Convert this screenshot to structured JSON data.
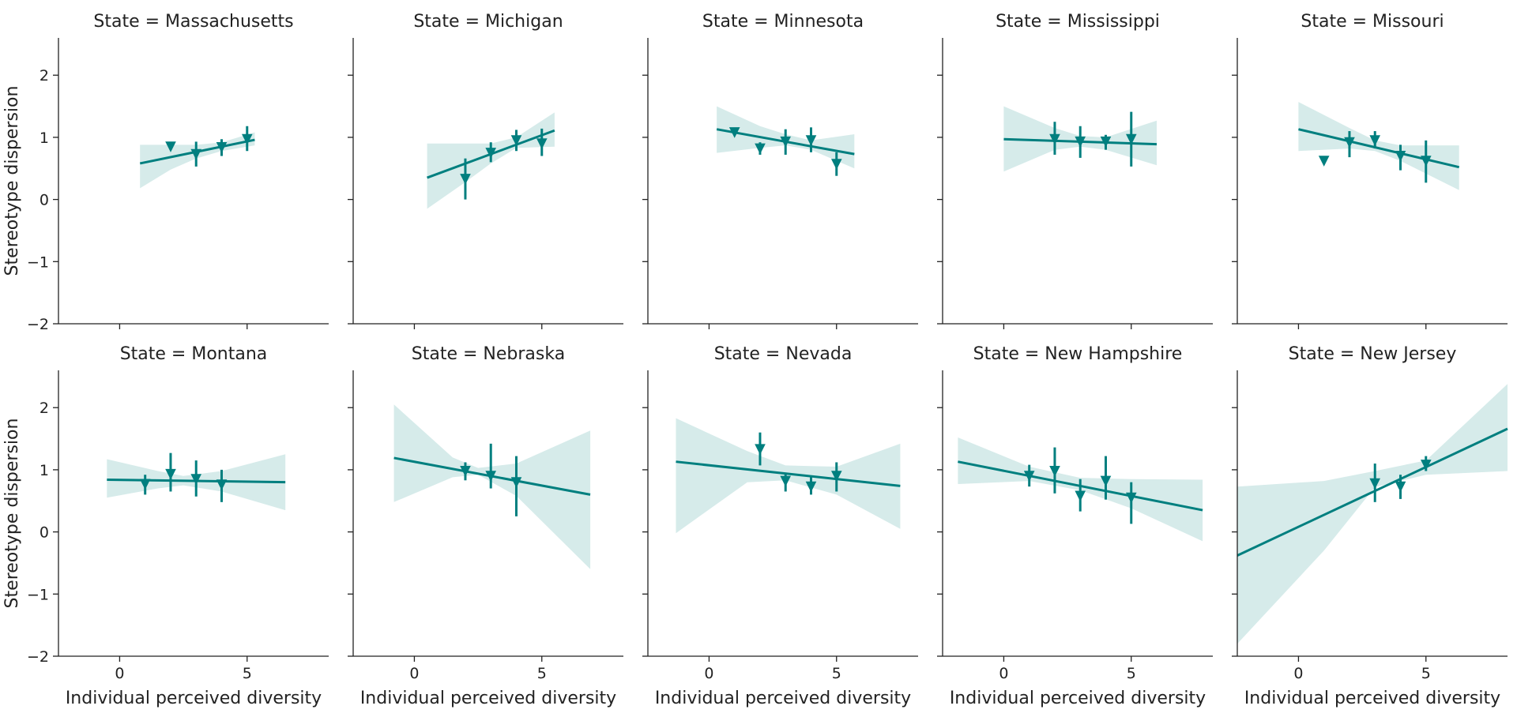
{
  "chart_data": {
    "type": "scatter",
    "layout": {
      "rows": 2,
      "cols": 5,
      "sharey": true,
      "sharex": true
    },
    "xlabel": "Individual perceived diversity",
    "ylabel": "Stereotype dispersion",
    "xlim": [
      -2.4,
      8.2
    ],
    "ylim": [
      -2.0,
      2.6
    ],
    "xticks": [
      0,
      5
    ],
    "yticks": [
      2,
      1,
      0,
      -1,
      -2
    ],
    "ytick_labels": [
      "2",
      "1",
      "0",
      "−1",
      "−2"
    ],
    "marker": "triangle-down",
    "color": "#007f7f",
    "band_color": "#d6ebea",
    "grid": false,
    "panels": [
      {
        "title": "State = Massachusetts",
        "points": [
          {
            "x": 2,
            "y": 0.85,
            "lo": 0.85,
            "hi": 0.85
          },
          {
            "x": 3,
            "y": 0.73,
            "lo": 0.53,
            "hi": 0.93
          },
          {
            "x": 4,
            "y": 0.84,
            "lo": 0.7,
            "hi": 0.97
          },
          {
            "x": 5,
            "y": 0.97,
            "lo": 0.78,
            "hi": 1.18
          }
        ],
        "fit": {
          "x0": 0.8,
          "y0": 0.58,
          "x1": 5.3,
          "y1": 0.96
        },
        "band": [
          [
            0.8,
            0.18,
            0.88
          ],
          [
            2.0,
            0.48,
            0.88
          ],
          [
            3.0,
            0.66,
            0.88
          ],
          [
            4.0,
            0.78,
            0.92
          ],
          [
            5.3,
            0.87,
            1.08
          ]
        ]
      },
      {
        "title": "State = Michigan",
        "points": [
          {
            "x": 2,
            "y": 0.33,
            "lo": 0.0,
            "hi": 0.66
          },
          {
            "x": 3,
            "y": 0.75,
            "lo": 0.6,
            "hi": 0.92
          },
          {
            "x": 4,
            "y": 0.95,
            "lo": 0.78,
            "hi": 1.12
          },
          {
            "x": 5,
            "y": 0.9,
            "lo": 0.7,
            "hi": 1.14
          }
        ],
        "fit": {
          "x0": 0.5,
          "y0": 0.35,
          "x1": 5.5,
          "y1": 1.11
        },
        "band": [
          [
            0.5,
            -0.15,
            0.9
          ],
          [
            2.0,
            0.28,
            0.9
          ],
          [
            3.0,
            0.58,
            0.9
          ],
          [
            4.0,
            0.83,
            1.0
          ],
          [
            5.5,
            0.85,
            1.4
          ]
        ]
      },
      {
        "title": "State = Minnesota",
        "points": [
          {
            "x": 1,
            "y": 1.08,
            "lo": 1.08,
            "hi": 1.08
          },
          {
            "x": 2,
            "y": 0.82,
            "lo": 0.72,
            "hi": 0.92
          },
          {
            "x": 3,
            "y": 0.93,
            "lo": 0.72,
            "hi": 1.13
          },
          {
            "x": 4,
            "y": 0.95,
            "lo": 0.76,
            "hi": 1.16
          },
          {
            "x": 5,
            "y": 0.57,
            "lo": 0.38,
            "hi": 0.76
          }
        ],
        "fit": {
          "x0": 0.3,
          "y0": 1.13,
          "x1": 5.7,
          "y1": 0.73
        },
        "band": [
          [
            0.3,
            0.75,
            1.5
          ],
          [
            2.0,
            0.83,
            1.18
          ],
          [
            3.0,
            0.87,
            1.05
          ],
          [
            4.0,
            0.8,
            0.95
          ],
          [
            5.7,
            0.5,
            1.05
          ]
        ]
      },
      {
        "title": "State = Mississippi",
        "points": [
          {
            "x": 2,
            "y": 0.97,
            "lo": 0.72,
            "hi": 1.25
          },
          {
            "x": 3,
            "y": 0.93,
            "lo": 0.67,
            "hi": 1.18
          },
          {
            "x": 4,
            "y": 0.93,
            "lo": 0.8,
            "hi": 1.04
          },
          {
            "x": 5,
            "y": 0.97,
            "lo": 0.53,
            "hi": 1.41
          }
        ],
        "fit": {
          "x0": 0.0,
          "y0": 0.97,
          "x1": 6.0,
          "y1": 0.89
        },
        "band": [
          [
            0.0,
            0.45,
            1.5
          ],
          [
            2.0,
            0.8,
            1.15
          ],
          [
            3.0,
            0.85,
            1.02
          ],
          [
            4.0,
            0.8,
            1.0
          ],
          [
            6.0,
            0.55,
            1.27
          ]
        ]
      },
      {
        "title": "State = Missouri",
        "points": [
          {
            "x": 1,
            "y": 0.62,
            "lo": 0.62,
            "hi": 0.62
          },
          {
            "x": 2,
            "y": 0.92,
            "lo": 0.68,
            "hi": 1.1
          },
          {
            "x": 3,
            "y": 0.95,
            "lo": 0.82,
            "hi": 1.1
          },
          {
            "x": 4,
            "y": 0.7,
            "lo": 0.47,
            "hi": 0.88
          },
          {
            "x": 5,
            "y": 0.62,
            "lo": 0.27,
            "hi": 0.95
          }
        ],
        "fit": {
          "x0": 0.0,
          "y0": 1.13,
          "x1": 6.3,
          "y1": 0.52
        },
        "band": [
          [
            0.0,
            0.78,
            1.57
          ],
          [
            2.0,
            0.82,
            1.15
          ],
          [
            3.0,
            0.78,
            0.95
          ],
          [
            4.0,
            0.62,
            0.87
          ],
          [
            6.3,
            0.15,
            0.87
          ]
        ]
      },
      {
        "title": "State = Montana",
        "points": [
          {
            "x": 1,
            "y": 0.77,
            "lo": 0.6,
            "hi": 0.92
          },
          {
            "x": 2,
            "y": 0.93,
            "lo": 0.65,
            "hi": 1.27
          },
          {
            "x": 3,
            "y": 0.85,
            "lo": 0.57,
            "hi": 1.15
          },
          {
            "x": 4,
            "y": 0.76,
            "lo": 0.48,
            "hi": 1.0
          }
        ],
        "fit": {
          "x0": -0.5,
          "y0": 0.84,
          "x1": 6.5,
          "y1": 0.8
        },
        "band": [
          [
            -0.5,
            0.55,
            1.17
          ],
          [
            1.5,
            0.7,
            0.98
          ],
          [
            2.5,
            0.75,
            0.9
          ],
          [
            4.0,
            0.65,
            0.98
          ],
          [
            6.5,
            0.35,
            1.25
          ]
        ]
      },
      {
        "title": "State = Nebraska",
        "points": [
          {
            "x": 2,
            "y": 0.98,
            "lo": 0.83,
            "hi": 1.12
          },
          {
            "x": 3,
            "y": 0.9,
            "lo": 0.7,
            "hi": 1.42
          },
          {
            "x": 4,
            "y": 0.8,
            "lo": 0.25,
            "hi": 1.22
          }
        ],
        "fit": {
          "x0": -0.8,
          "y0": 1.19,
          "x1": 6.9,
          "y1": 0.6
        },
        "band": [
          [
            -0.8,
            0.48,
            2.05
          ],
          [
            1.5,
            0.88,
            1.2
          ],
          [
            2.5,
            0.92,
            1.03
          ],
          [
            4.0,
            0.58,
            1.1
          ],
          [
            6.9,
            -0.6,
            1.63
          ]
        ]
      },
      {
        "title": "State = Nevada",
        "points": [
          {
            "x": 2,
            "y": 1.33,
            "lo": 1.07,
            "hi": 1.6
          },
          {
            "x": 3,
            "y": 0.82,
            "lo": 0.65,
            "hi": 0.95
          },
          {
            "x": 4,
            "y": 0.73,
            "lo": 0.6,
            "hi": 0.88
          },
          {
            "x": 5,
            "y": 0.9,
            "lo": 0.65,
            "hi": 1.12
          }
        ],
        "fit": {
          "x0": -1.3,
          "y0": 1.13,
          "x1": 7.5,
          "y1": 0.74
        },
        "band": [
          [
            -1.3,
            -0.02,
            1.83
          ],
          [
            1.5,
            0.8,
            1.3
          ],
          [
            3.0,
            0.83,
            1.07
          ],
          [
            5.0,
            0.6,
            1.05
          ],
          [
            7.5,
            0.05,
            1.42
          ]
        ]
      },
      {
        "title": "State = New Hampshire",
        "points": [
          {
            "x": 1,
            "y": 0.9,
            "lo": 0.73,
            "hi": 1.08
          },
          {
            "x": 2,
            "y": 0.98,
            "lo": 0.62,
            "hi": 1.36
          },
          {
            "x": 3,
            "y": 0.58,
            "lo": 0.33,
            "hi": 0.85
          },
          {
            "x": 4,
            "y": 0.82,
            "lo": 0.52,
            "hi": 1.22
          },
          {
            "x": 5,
            "y": 0.55,
            "lo": 0.13,
            "hi": 0.8
          }
        ],
        "fit": {
          "x0": -1.8,
          "y0": 1.13,
          "x1": 7.8,
          "y1": 0.35
        },
        "band": [
          [
            -1.8,
            0.77,
            1.52
          ],
          [
            1.0,
            0.82,
            1.05
          ],
          [
            3.0,
            0.67,
            0.87
          ],
          [
            5.0,
            0.38,
            0.85
          ],
          [
            7.8,
            -0.15,
            0.84
          ]
        ]
      },
      {
        "title": "State = New Jersey",
        "points": [
          {
            "x": 3,
            "y": 0.78,
            "lo": 0.48,
            "hi": 1.1
          },
          {
            "x": 4,
            "y": 0.73,
            "lo": 0.53,
            "hi": 0.92
          },
          {
            "x": 5,
            "y": 1.08,
            "lo": 0.98,
            "hi": 1.22
          }
        ],
        "fit": {
          "x0": -2.4,
          "y0": -0.38,
          "x1": 8.2,
          "y1": 1.66
        },
        "band": [
          [
            -2.4,
            -1.8,
            0.73
          ],
          [
            1.0,
            -0.3,
            0.82
          ],
          [
            3.0,
            0.72,
            0.98
          ],
          [
            5.0,
            0.92,
            1.15
          ],
          [
            8.2,
            0.98,
            2.38
          ]
        ]
      }
    ]
  }
}
